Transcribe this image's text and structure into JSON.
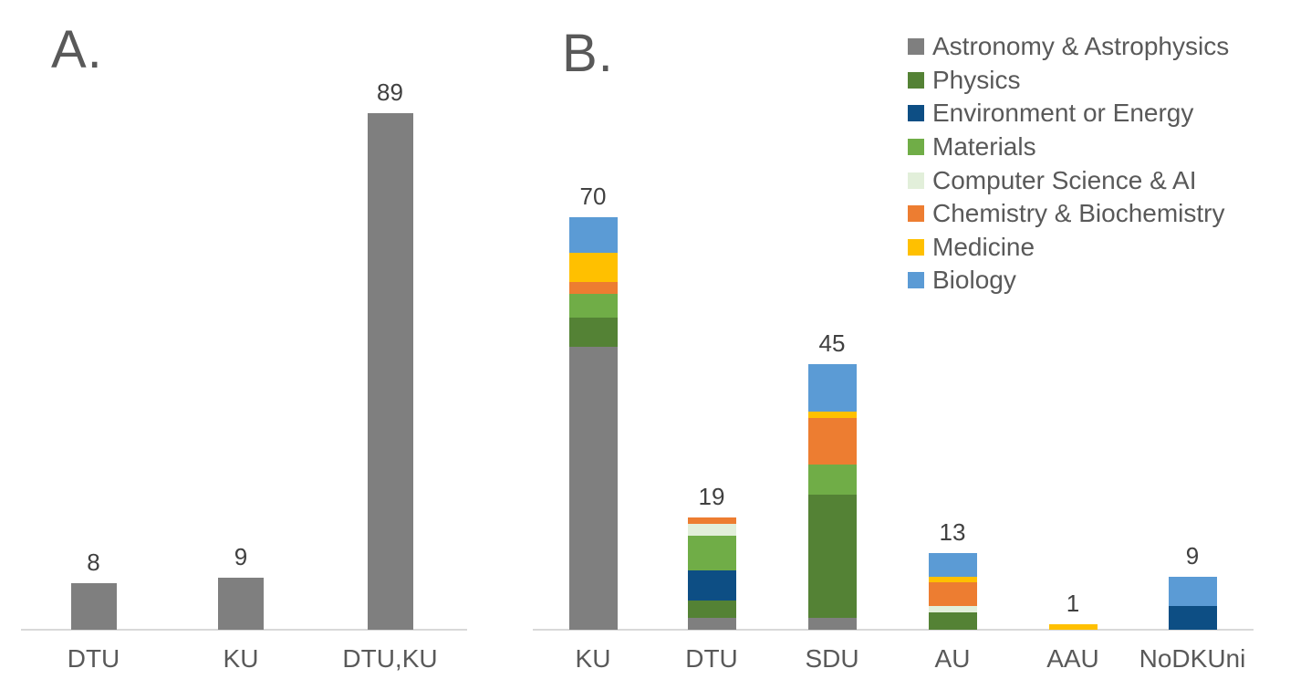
{
  "figure": {
    "background": "#ffffff",
    "axis_line_color": "#d9d9d9",
    "title_color": "#595959",
    "value_label_color": "#404040",
    "tick_label_color": "#595959"
  },
  "legend": {
    "position": "top-right",
    "items": [
      {
        "label": "Astronomy & Astrophysics",
        "color": "#7f7f7f"
      },
      {
        "label": "Physics",
        "color": "#548235"
      },
      {
        "label": "Environment or Energy",
        "color": "#0d4e84"
      },
      {
        "label": "Materials",
        "color": "#70ad47"
      },
      {
        "label": "Computer Science & AI",
        "color": "#e2efda"
      },
      {
        "label": "Chemistry & Biochemistry",
        "color": "#ed7d31"
      },
      {
        "label": "Medicine",
        "color": "#ffc000"
      },
      {
        "label": "Biology",
        "color": "#5b9bd5"
      }
    ]
  },
  "chart_data": [
    {
      "type": "bar",
      "panel": "A",
      "title": "A.",
      "categories": [
        "DTU",
        "KU",
        "DTU,KU"
      ],
      "values": [
        8,
        9,
        89
      ],
      "data_labels": [
        "8",
        "9",
        "89"
      ],
      "bar_color": "#7f7f7f",
      "xlabel": "",
      "ylabel": "",
      "ylim": [
        0,
        89
      ],
      "grid": false,
      "y_axis_visible": false
    },
    {
      "type": "bar",
      "stacked": true,
      "panel": "B",
      "title": "B.",
      "categories": [
        "KU",
        "DTU",
        "SDU",
        "AU",
        "AAU",
        "NoDKUni"
      ],
      "totals": [
        70,
        19,
        45,
        13,
        1,
        9
      ],
      "data_labels": [
        "70",
        "19",
        "45",
        "13",
        "1",
        "9"
      ],
      "series": [
        {
          "name": "Astronomy & Astrophysics",
          "color": "#7f7f7f",
          "values": [
            48,
            2,
            2,
            0,
            0,
            0
          ]
        },
        {
          "name": "Physics",
          "color": "#548235",
          "values": [
            5,
            3,
            21,
            3,
            0,
            0
          ]
        },
        {
          "name": "Environment or Energy",
          "color": "#0d4e84",
          "values": [
            0,
            5,
            0,
            0,
            0,
            4
          ]
        },
        {
          "name": "Materials",
          "color": "#70ad47",
          "values": [
            4,
            6,
            5,
            0,
            0,
            0
          ]
        },
        {
          "name": "Computer Science & AI",
          "color": "#e2efda",
          "values": [
            0,
            2,
            0,
            1,
            0,
            0
          ]
        },
        {
          "name": "Chemistry & Biochemistry",
          "color": "#ed7d31",
          "values": [
            2,
            1,
            8,
            4,
            0,
            0
          ]
        },
        {
          "name": "Medicine",
          "color": "#ffc000",
          "values": [
            5,
            0,
            1,
            1,
            1,
            0
          ]
        },
        {
          "name": "Biology",
          "color": "#5b9bd5",
          "values": [
            6,
            0,
            8,
            4,
            0,
            5
          ]
        }
      ],
      "stack_order": "first-series-at-bottom",
      "legend_position": "top-right",
      "xlabel": "",
      "ylabel": "",
      "ylim": [
        0,
        70
      ],
      "grid": false,
      "y_axis_visible": false
    }
  ]
}
